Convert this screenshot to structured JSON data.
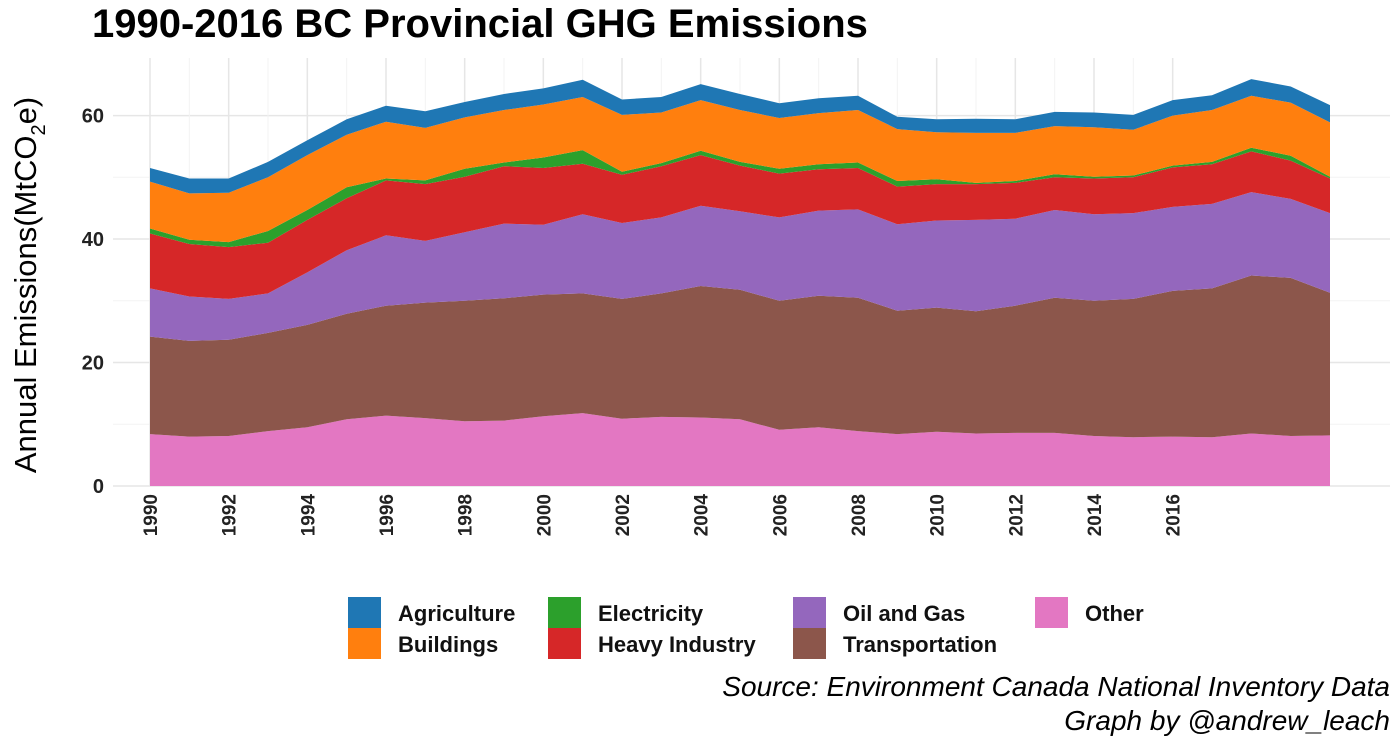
{
  "chart_data": {
    "type": "area",
    "title": "1990-2016 BC Provincial GHG Emissions",
    "ylabel_prefix": "Annual Emissions(MtCO",
    "ylabel_sub": "2",
    "ylabel_suffix": "e)",
    "xlabel": "",
    "x": [
      1990,
      1991,
      1992,
      1993,
      1994,
      1995,
      1996,
      1997,
      1998,
      1999,
      2000,
      2001,
      2002,
      2003,
      2004,
      2005,
      2006,
      2007,
      2008,
      2009,
      2010,
      2011,
      2012,
      2013,
      2014,
      2015,
      2016,
      2017,
      2018,
      2019,
      2020
    ],
    "xlim": [
      1990,
      2020
    ],
    "x_ticks": [
      1990,
      1992,
      1994,
      1996,
      1998,
      2000,
      2002,
      2004,
      2006,
      2008,
      2010,
      2012,
      2014,
      2016
    ],
    "ylim": [
      0,
      69
    ],
    "y_ticks": [
      0,
      20,
      40,
      60
    ],
    "grid": true,
    "legend_position": "bottom",
    "series": [
      {
        "name": "Other",
        "color": "#E377C2",
        "values": [
          8.4,
          8.0,
          8.1,
          8.9,
          9.5,
          10.8,
          11.4,
          11.0,
          10.5,
          10.6,
          11.3,
          11.8,
          10.9,
          11.2,
          11.1,
          10.8,
          9.1,
          9.5,
          8.9,
          8.4,
          8.8,
          8.5,
          8.6,
          8.6,
          8.1,
          7.9,
          8.0,
          7.9,
          8.5,
          8.1,
          8.2
        ]
      },
      {
        "name": "Transportation",
        "color": "#8C564B",
        "values": [
          15.8,
          15.5,
          15.6,
          15.9,
          16.6,
          17.1,
          17.8,
          18.7,
          19.5,
          19.8,
          19.7,
          19.4,
          19.4,
          20.0,
          21.3,
          21.0,
          20.9,
          21.3,
          21.6,
          20.0,
          20.1,
          19.8,
          20.6,
          21.9,
          21.9,
          22.4,
          23.6,
          24.1,
          25.6,
          25.6,
          23.1
        ]
      },
      {
        "name": "Oil and Gas",
        "color": "#9467BD",
        "values": [
          7.8,
          7.2,
          6.6,
          6.4,
          8.5,
          10.3,
          11.4,
          10.0,
          11.1,
          12.1,
          11.3,
          12.8,
          12.3,
          12.3,
          13.0,
          12.7,
          13.5,
          13.8,
          14.3,
          14.0,
          14.1,
          14.8,
          14.1,
          14.2,
          14.0,
          13.9,
          13.6,
          13.7,
          13.5,
          12.8,
          12.9
        ]
      },
      {
        "name": "Heavy Industry",
        "color": "#D62728",
        "values": [
          8.9,
          8.5,
          8.4,
          8.2,
          8.5,
          8.4,
          8.9,
          9.2,
          9.0,
          9.3,
          9.2,
          8.2,
          7.8,
          8.3,
          8.2,
          7.4,
          7.1,
          6.7,
          6.7,
          6.1,
          5.9,
          5.8,
          5.8,
          5.3,
          5.8,
          5.8,
          6.4,
          6.4,
          6.6,
          6.2,
          5.6
        ]
      },
      {
        "name": "Electricity",
        "color": "#2CA02C",
        "values": [
          0.8,
          0.7,
          0.8,
          1.9,
          1.6,
          1.8,
          0.3,
          0.6,
          1.3,
          0.6,
          1.7,
          2.2,
          0.5,
          0.5,
          0.7,
          0.6,
          0.8,
          0.8,
          0.9,
          0.9,
          0.8,
          0.2,
          0.3,
          0.5,
          0.3,
          0.3,
          0.3,
          0.4,
          0.6,
          0.8,
          0.3
        ]
      },
      {
        "name": "Buildings",
        "color": "#FF7F0E",
        "values": [
          7.6,
          7.5,
          8.0,
          8.7,
          8.9,
          8.5,
          9.2,
          8.5,
          8.3,
          8.5,
          8.6,
          8.6,
          9.2,
          8.2,
          8.2,
          8.4,
          8.2,
          8.3,
          8.5,
          8.4,
          7.6,
          8.1,
          7.8,
          7.8,
          8.0,
          7.4,
          8.1,
          8.4,
          8.4,
          8.6,
          8.8
        ]
      },
      {
        "name": "Agriculture",
        "color": "#1F77B4",
        "values": [
          2.2,
          2.4,
          2.3,
          2.5,
          2.4,
          2.5,
          2.6,
          2.7,
          2.5,
          2.6,
          2.6,
          2.8,
          2.5,
          2.5,
          2.6,
          2.6,
          2.4,
          2.4,
          2.3,
          2.0,
          2.1,
          2.3,
          2.2,
          2.3,
          2.4,
          2.4,
          2.5,
          2.4,
          2.7,
          2.6,
          2.8
        ]
      }
    ]
  },
  "legend": [
    {
      "label": "Agriculture",
      "color": "#1F77B4"
    },
    {
      "label": "Buildings",
      "color": "#FF7F0E"
    },
    {
      "label": "Electricity",
      "color": "#2CA02C"
    },
    {
      "label": "Heavy Industry",
      "color": "#D62728"
    },
    {
      "label": "Oil and Gas",
      "color": "#9467BD"
    },
    {
      "label": "Transportation",
      "color": "#8C564B"
    },
    {
      "label": "Other",
      "color": "#E377C2"
    }
  ],
  "caption": {
    "source": "Source: Environment Canada National Inventory Data",
    "credit": "Graph by @andrew_leach"
  }
}
